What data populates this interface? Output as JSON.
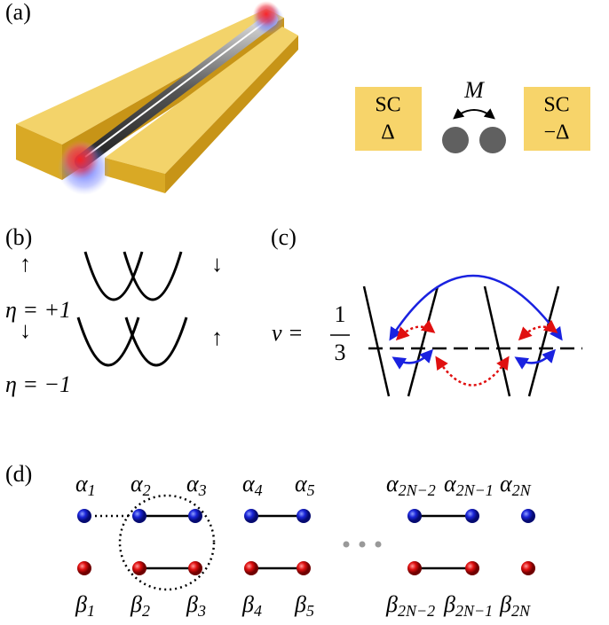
{
  "panels": {
    "a": {
      "label": "(a)",
      "left_box": {
        "line1": "SC",
        "line2": "Δ"
      },
      "coupling": "M",
      "right_box": {
        "line1": "SC",
        "line2": "−Δ"
      }
    },
    "b": {
      "label": "(b)",
      "upper": {
        "left_spin": "↑",
        "right_spin": "↓",
        "eta": "η = +1"
      },
      "lower": {
        "left_spin": "↓",
        "right_spin": "↑",
        "eta": "η = −1"
      }
    },
    "c": {
      "label": "(c)",
      "nu": "ν =",
      "numerator": "1",
      "denominator": "3"
    },
    "d": {
      "label": "(d)",
      "alpha": [
        {
          "base": "α",
          "sub": "1"
        },
        {
          "base": "α",
          "sub": "2"
        },
        {
          "base": "α",
          "sub": "3"
        },
        {
          "base": "α",
          "sub": "4"
        },
        {
          "base": "α",
          "sub": "5"
        },
        {
          "base": "α",
          "sub": "2N−2"
        },
        {
          "base": "α",
          "sub": "2N−1"
        },
        {
          "base": "α",
          "sub": "2N"
        }
      ],
      "beta": [
        {
          "base": "β",
          "sub": "1"
        },
        {
          "base": "β",
          "sub": "2"
        },
        {
          "base": "β",
          "sub": "3"
        },
        {
          "base": "β",
          "sub": "4"
        },
        {
          "base": "β",
          "sub": "5"
        },
        {
          "base": "β",
          "sub": "2N−2"
        },
        {
          "base": "β",
          "sub": "2N−1"
        },
        {
          "base": "β",
          "sub": "2N"
        }
      ]
    }
  }
}
